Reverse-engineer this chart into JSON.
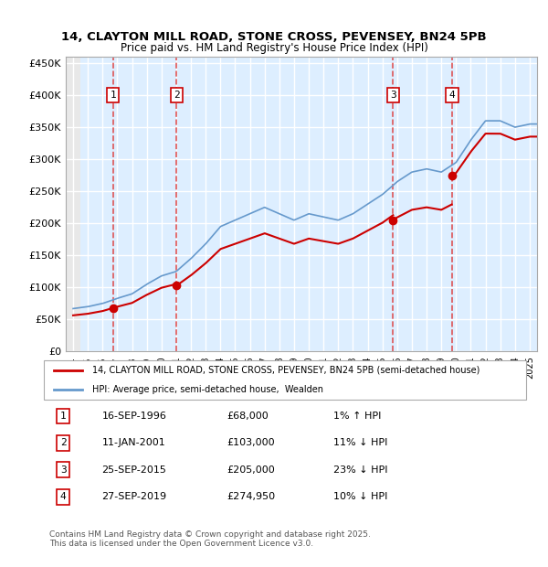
{
  "title1": "14, CLAYTON MILL ROAD, STONE CROSS, PEVENSEY, BN24 5PB",
  "title2": "Price paid vs. HM Land Registry's House Price Index (HPI)",
  "ylabel": "",
  "background_color": "#ffffff",
  "plot_bg_color": "#ddeeff",
  "hatch_color": "#cccccc",
  "grid_color": "#ffffff",
  "sale_dates_num": [
    1996.71,
    2001.03,
    2015.73,
    2019.74
  ],
  "sale_prices": [
    68000,
    103000,
    205000,
    274950
  ],
  "sale_labels": [
    "1",
    "2",
    "3",
    "4"
  ],
  "legend_red": "14, CLAYTON MILL ROAD, STONE CROSS, PEVENSEY, BN24 5PB (semi-detached house)",
  "legend_blue": "HPI: Average price, semi-detached house,  Wealden",
  "table_rows": [
    [
      "1",
      "16-SEP-1996",
      "£68,000",
      "1% ↑ HPI"
    ],
    [
      "2",
      "11-JAN-2001",
      "£103,000",
      "11% ↓ HPI"
    ],
    [
      "3",
      "25-SEP-2015",
      "£205,000",
      "23% ↓ HPI"
    ],
    [
      "4",
      "27-SEP-2019",
      "£274,950",
      "10% ↓ HPI"
    ]
  ],
  "footer": "Contains HM Land Registry data © Crown copyright and database right 2025.\nThis data is licensed under the Open Government Licence v3.0.",
  "xmin": 1994,
  "xmax": 2025.5,
  "ymin": 0,
  "ymax": 460000,
  "yticks": [
    0,
    50000,
    100000,
    150000,
    200000,
    250000,
    300000,
    350000,
    400000,
    450000
  ],
  "ytick_labels": [
    "£0",
    "£50K",
    "£100K",
    "£150K",
    "£200K",
    "£250K",
    "£300K",
    "£350K",
    "£400K",
    "£450K"
  ],
  "red_color": "#cc0000",
  "blue_color": "#6699cc",
  "sale_vline_color": "#dd4444"
}
